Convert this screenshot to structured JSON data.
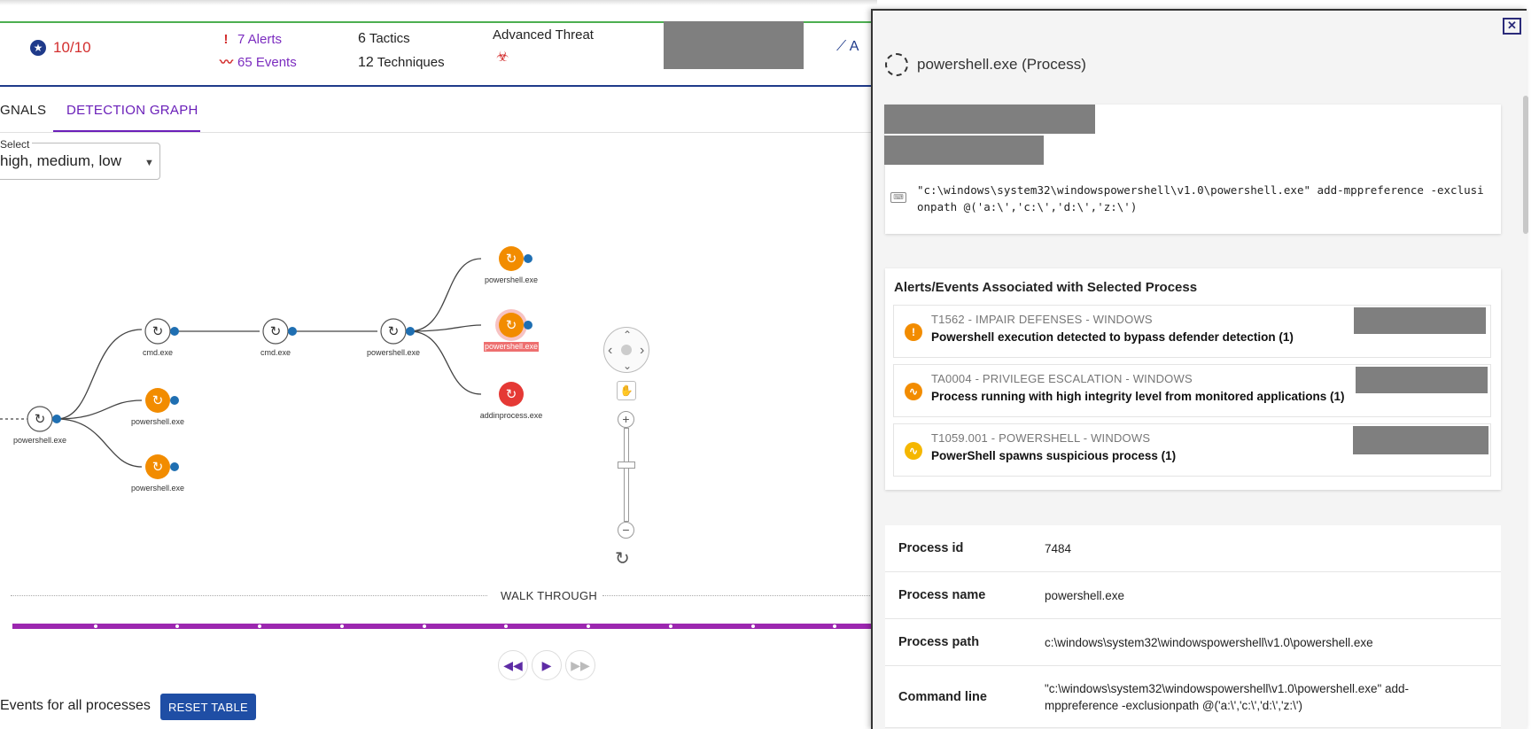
{
  "header": {
    "score": "10/10",
    "alerts": "7 Alerts",
    "events": "65 Events",
    "tactics_count": "6",
    "tactics_label": "Tactics",
    "techniques_count": "12",
    "techniques_label": "Techniques",
    "threat": "Advanced Threat",
    "more_link": "A"
  },
  "tabs": [
    {
      "label": "GNALS"
    },
    {
      "label": "DETECTION GRAPH"
    }
  ],
  "select": {
    "label": "Select",
    "value": "high, medium, low"
  },
  "graph_nodes": [
    {
      "label": "powershell.exe",
      "kind": "process"
    },
    {
      "label": "cmd.exe",
      "kind": "process"
    },
    {
      "label": "powershell.exe",
      "kind": "alert"
    },
    {
      "label": "powershell.exe",
      "kind": "alert"
    },
    {
      "label": "cmd.exe",
      "kind": "process"
    },
    {
      "label": "powershell.exe",
      "kind": "process"
    },
    {
      "label": "powershell.exe",
      "kind": "alert"
    },
    {
      "label": "powershell.exe",
      "kind": "selected"
    },
    {
      "label": "addinprocess.exe",
      "kind": "critical"
    }
  ],
  "walk_through": "WALK THROUGH",
  "events_label": "Events for all processes",
  "reset_button": "RESET TABLE",
  "panel": {
    "title": "powershell.exe (Process)",
    "command": "\"c:\\windows\\system32\\windowspowershell\\v1.0\\powershell.exe\" add-mppreference -exclusionpath @('a:\\','c:\\','d:\\','z:\\')",
    "assoc_title": "Alerts/Events Associated with Selected Process",
    "alerts": [
      {
        "code": "T1562 - IMPAIR DEFENSES - WINDOWS",
        "desc": "Powershell execution detected to bypass defender detection (1)",
        "icon": "!",
        "color": "#f28c00"
      },
      {
        "code": "TA0004 - PRIVILEGE ESCALATION - WINDOWS",
        "desc": "Process running with high integrity level from monitored applications (1)",
        "icon": "~",
        "color": "#f28c00"
      },
      {
        "code": "T1059.001 - POWERSHELL - WINDOWS",
        "desc": "PowerShell spawns suspicious process (1)",
        "icon": "~",
        "color": "#f5b700"
      }
    ],
    "details": [
      {
        "key": "Process id",
        "value": "7484"
      },
      {
        "key": "Process name",
        "value": "powershell.exe"
      },
      {
        "key": "Process path",
        "value": "c:\\windows\\system32\\windowspowershell\\v1.0\\powershell.exe"
      },
      {
        "key": "Command line",
        "value": "\"c:\\windows\\system32\\windowspowershell\\v1.0\\powershell.exe\" add-mppreference -exclusionpath @('a:\\','c:\\','d:\\','z:\\')"
      }
    ]
  },
  "colors": {
    "accent": "#6a1fb9",
    "alert_orange": "#f28c00",
    "critical_red": "#e53935",
    "brand_blue": "#1f4ea5"
  }
}
